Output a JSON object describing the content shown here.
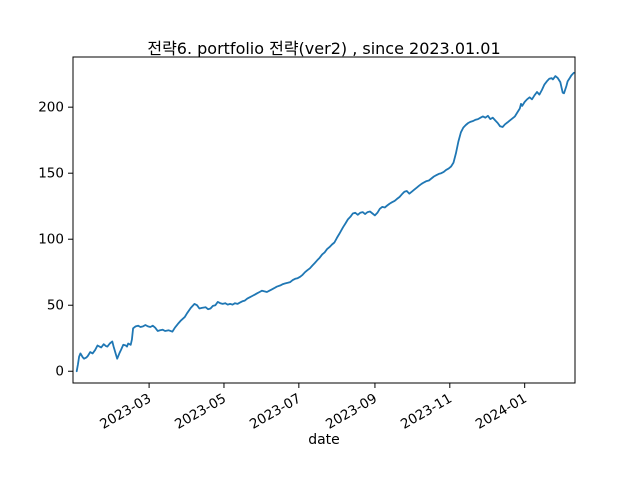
{
  "figure": {
    "background": "#ffffff",
    "text_color": "#000000",
    "spine_color": "#000000"
  },
  "chart_data": {
    "type": "line",
    "title": "전략6. portfolio 전략(ver2) , since 2023.01.01",
    "xlabel": "date",
    "ylabel": "",
    "grid": false,
    "legend": "none",
    "line_color": "#1f77b4",
    "start_date": "2023-01-01",
    "x_unit": "days since 2023-01-01",
    "xlim_days": [
      -3,
      406
    ],
    "ylim": [
      -8.9,
      238
    ],
    "y_ticks": [
      0,
      50,
      100,
      150,
      200
    ],
    "x_ticks": [
      {
        "day": 59,
        "label": "2023-03"
      },
      {
        "day": 120,
        "label": "2023-05"
      },
      {
        "day": 181,
        "label": "2023-07"
      },
      {
        "day": 243,
        "label": "2023-09"
      },
      {
        "day": 304,
        "label": "2023-11"
      },
      {
        "day": 365,
        "label": "2024-01"
      }
    ],
    "points": [
      [
        0,
        0
      ],
      [
        1,
        5
      ],
      [
        2,
        11
      ],
      [
        3,
        13.5
      ],
      [
        4,
        12
      ],
      [
        5,
        10.5
      ],
      [
        6,
        9.5
      ],
      [
        8,
        10.5
      ],
      [
        9,
        11.5
      ],
      [
        11,
        14.5
      ],
      [
        13,
        13.5
      ],
      [
        15,
        16
      ],
      [
        17,
        19.5
      ],
      [
        19,
        18.5
      ],
      [
        20,
        18
      ],
      [
        22,
        20.5
      ],
      [
        24,
        19
      ],
      [
        25,
        18.7
      ],
      [
        27,
        21
      ],
      [
        29,
        22.5
      ],
      [
        30,
        19
      ],
      [
        32,
        12.5
      ],
      [
        33,
        9.5
      ],
      [
        35,
        14
      ],
      [
        36,
        16
      ],
      [
        38,
        20
      ],
      [
        40,
        19.5
      ],
      [
        41,
        18.7
      ],
      [
        42,
        21
      ],
      [
        44,
        20
      ],
      [
        45,
        24
      ],
      [
        46,
        32.5
      ],
      [
        48,
        34
      ],
      [
        50,
        34.5
      ],
      [
        52,
        33.5
      ],
      [
        54,
        34
      ],
      [
        56,
        35
      ],
      [
        58,
        34
      ],
      [
        60,
        33.5
      ],
      [
        62,
        34.5
      ],
      [
        64,
        33
      ],
      [
        66,
        30.5
      ],
      [
        68,
        31
      ],
      [
        70,
        31.5
      ],
      [
        72,
        30.5
      ],
      [
        75,
        31
      ],
      [
        78,
        30
      ],
      [
        80,
        33
      ],
      [
        83,
        36.5
      ],
      [
        85,
        38.5
      ],
      [
        88,
        41
      ],
      [
        90,
        44
      ],
      [
        93,
        48
      ],
      [
        96,
        51
      ],
      [
        98,
        50
      ],
      [
        100,
        47.5
      ],
      [
        102,
        48
      ],
      [
        105,
        48.5
      ],
      [
        107,
        47
      ],
      [
        109,
        47.5
      ],
      [
        111,
        49.5
      ],
      [
        113,
        50
      ],
      [
        115,
        52.5
      ],
      [
        117,
        51.5
      ],
      [
        119,
        51
      ],
      [
        121,
        51.5
      ],
      [
        123,
        50.5
      ],
      [
        125,
        51
      ],
      [
        127,
        50.5
      ],
      [
        129,
        51.5
      ],
      [
        131,
        51
      ],
      [
        133,
        52
      ],
      [
        135,
        53
      ],
      [
        137,
        53.5
      ],
      [
        139,
        55
      ],
      [
        141,
        56
      ],
      [
        143,
        57
      ],
      [
        145,
        58
      ],
      [
        147,
        59
      ],
      [
        149,
        60
      ],
      [
        151,
        61
      ],
      [
        153,
        60.5
      ],
      [
        155,
        60
      ],
      [
        157,
        61
      ],
      [
        159,
        62
      ],
      [
        161,
        63
      ],
      [
        163,
        64
      ],
      [
        166,
        65
      ],
      [
        168,
        66
      ],
      [
        170,
        66.5
      ],
      [
        172,
        67
      ],
      [
        174,
        67.5
      ],
      [
        176,
        69
      ],
      [
        178,
        70
      ],
      [
        180,
        70.5
      ],
      [
        182,
        71.5
      ],
      [
        184,
        73
      ],
      [
        186,
        75
      ],
      [
        188,
        76.5
      ],
      [
        190,
        78
      ],
      [
        192,
        80
      ],
      [
        194,
        82
      ],
      [
        196,
        84
      ],
      [
        198,
        86
      ],
      [
        200,
        88.5
      ],
      [
        202,
        90
      ],
      [
        204,
        92.5
      ],
      [
        206,
        94
      ],
      [
        208,
        96
      ],
      [
        210,
        97.5
      ],
      [
        212,
        101
      ],
      [
        214,
        104
      ],
      [
        217,
        109
      ],
      [
        219,
        112
      ],
      [
        221,
        115
      ],
      [
        223,
        117
      ],
      [
        225,
        119.5
      ],
      [
        227,
        120
      ],
      [
        229,
        118.5
      ],
      [
        231,
        120
      ],
      [
        233,
        120.5
      ],
      [
        235,
        119
      ],
      [
        237,
        120.5
      ],
      [
        239,
        121
      ],
      [
        241,
        119.5
      ],
      [
        243,
        118
      ],
      [
        245,
        120
      ],
      [
        247,
        123
      ],
      [
        249,
        124.5
      ],
      [
        251,
        124
      ],
      [
        253,
        125.5
      ],
      [
        255,
        127
      ],
      [
        257,
        128
      ],
      [
        259,
        129
      ],
      [
        261,
        130.5
      ],
      [
        263,
        132
      ],
      [
        265,
        134
      ],
      [
        267,
        136
      ],
      [
        269,
        136.5
      ],
      [
        271,
        134.5
      ],
      [
        273,
        136
      ],
      [
        275,
        137.5
      ],
      [
        277,
        139
      ],
      [
        279,
        140.5
      ],
      [
        281,
        142
      ],
      [
        283,
        143
      ],
      [
        285,
        144
      ],
      [
        287,
        144.5
      ],
      [
        289,
        146
      ],
      [
        291,
        147.5
      ],
      [
        293,
        148.5
      ],
      [
        295,
        149.5
      ],
      [
        297,
        150
      ],
      [
        299,
        151
      ],
      [
        301,
        152.5
      ],
      [
        303,
        153.5
      ],
      [
        305,
        155
      ],
      [
        307,
        158
      ],
      [
        309,
        165
      ],
      [
        311,
        174
      ],
      [
        313,
        181
      ],
      [
        315,
        184.5
      ],
      [
        317,
        186.5
      ],
      [
        319,
        188
      ],
      [
        321,
        189
      ],
      [
        323,
        189.5
      ],
      [
        325,
        190.5
      ],
      [
        327,
        191
      ],
      [
        329,
        192
      ],
      [
        331,
        193
      ],
      [
        333,
        192
      ],
      [
        335,
        193.5
      ],
      [
        337,
        191
      ],
      [
        339,
        192
      ],
      [
        341,
        190
      ],
      [
        343,
        188
      ],
      [
        345,
        185.5
      ],
      [
        347,
        185
      ],
      [
        349,
        187
      ],
      [
        351,
        188.5
      ],
      [
        353,
        190
      ],
      [
        355,
        191.5
      ],
      [
        357,
        193
      ],
      [
        359,
        196
      ],
      [
        361,
        199
      ],
      [
        362,
        202.5
      ],
      [
        363,
        201
      ],
      [
        365,
        204
      ],
      [
        367,
        206
      ],
      [
        369,
        207.5
      ],
      [
        371,
        206
      ],
      [
        373,
        209
      ],
      [
        375,
        211.5
      ],
      [
        377,
        209.5
      ],
      [
        379,
        213
      ],
      [
        381,
        217
      ],
      [
        383,
        219.5
      ],
      [
        385,
        221.5
      ],
      [
        387,
        222
      ],
      [
        388,
        221
      ],
      [
        390,
        223.5
      ],
      [
        392,
        222
      ],
      [
        394,
        219
      ],
      [
        396,
        211
      ],
      [
        397,
        210.5
      ],
      [
        399,
        216
      ],
      [
        400,
        219.5
      ],
      [
        402,
        222.5
      ],
      [
        403,
        224
      ],
      [
        405,
        226
      ]
    ]
  }
}
